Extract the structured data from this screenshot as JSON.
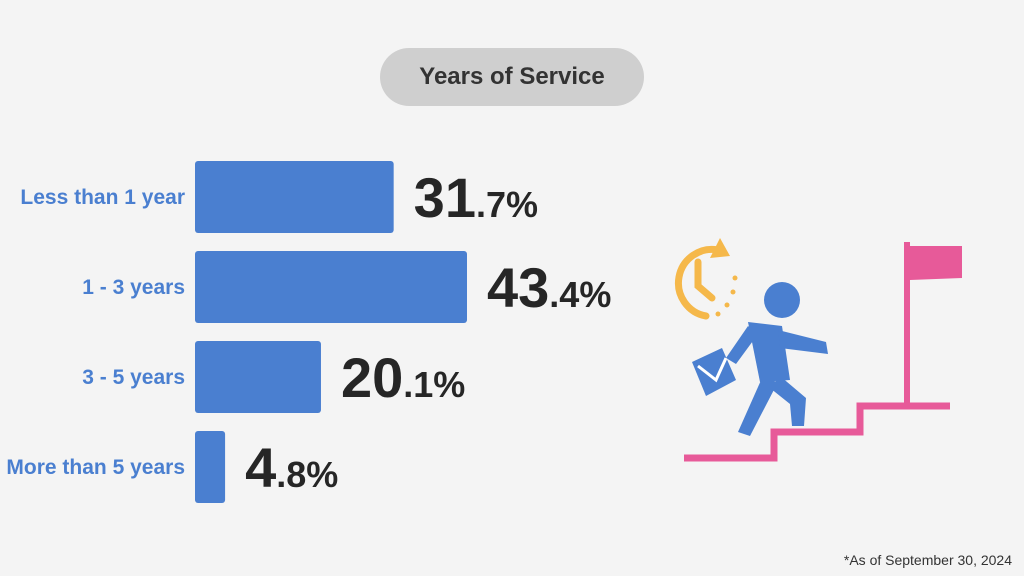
{
  "title": "Years of Service",
  "footnote": "*As of September 30, 2024",
  "colors": {
    "bar": "#4a7fd0",
    "label": "#4a7fd0",
    "value_text": "#262626",
    "pill": "#cfcfcf",
    "clock": "#f5b84a",
    "person": "#4a7fd0",
    "stairs": "#e75a99",
    "flag": "#e75a99"
  },
  "icons": [
    "clock-arrow-icon",
    "person-climbing-icon",
    "briefcase-icon",
    "stairs-icon",
    "flag-icon"
  ],
  "chart_data": {
    "type": "bar",
    "orientation": "horizontal",
    "title": "Years of Service",
    "categories": [
      "Less than 1 year",
      "1 - 3 years",
      "3 - 5 years",
      "More than 5 years"
    ],
    "values": [
      31.7,
      43.4,
      20.1,
      4.8
    ],
    "value_labels": [
      {
        "whole": "31",
        "decimal": ".7",
        "unit": "%"
      },
      {
        "whole": "43",
        "decimal": ".4",
        "unit": "%"
      },
      {
        "whole": "20",
        "decimal": ".1",
        "unit": "%"
      },
      {
        "whole": "4",
        "decimal": ".8",
        "unit": "%"
      }
    ],
    "xlim": [
      0,
      43.4
    ],
    "grid": false,
    "legend": "none"
  }
}
